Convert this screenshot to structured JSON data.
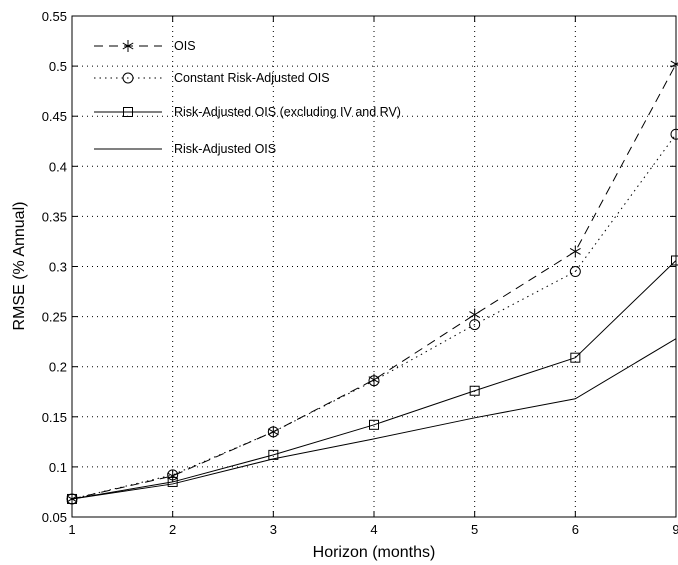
{
  "chart_data": {
    "type": "line",
    "xlabel": "Horizon (months)",
    "ylabel": "RMSE (% Annual)",
    "categories": [
      "1",
      "2",
      "3",
      "4",
      "5",
      "6",
      "9"
    ],
    "ylim": [
      0.05,
      0.55
    ],
    "yticks": [
      "0.05",
      "0.1",
      "0.15",
      "0.2",
      "0.25",
      "0.3",
      "0.35",
      "0.4",
      "0.45",
      "0.5",
      "0.55"
    ],
    "grid": true,
    "legend_position": "top-left",
    "series": [
      {
        "name": "OIS",
        "values": [
          0.068,
          0.091,
          0.135,
          0.187,
          0.252,
          0.315,
          0.502
        ],
        "line_style": "dashed",
        "marker": "asterisk"
      },
      {
        "name": "Constant Risk-Adjusted OIS",
        "values": [
          0.068,
          0.092,
          0.135,
          0.186,
          0.242,
          0.295,
          0.432
        ],
        "line_style": "dotted",
        "marker": "circle"
      },
      {
        "name": "Risk-Adjusted OIS (excluding IV and RV)",
        "values": [
          0.068,
          0.085,
          0.112,
          0.142,
          0.176,
          0.209,
          0.306
        ],
        "line_style": "solid",
        "marker": "square"
      },
      {
        "name": "Risk-Adjusted OIS",
        "values": [
          0.068,
          0.083,
          0.108,
          0.128,
          0.149,
          0.168,
          0.228
        ],
        "line_style": "solid",
        "marker": "none"
      }
    ]
  }
}
